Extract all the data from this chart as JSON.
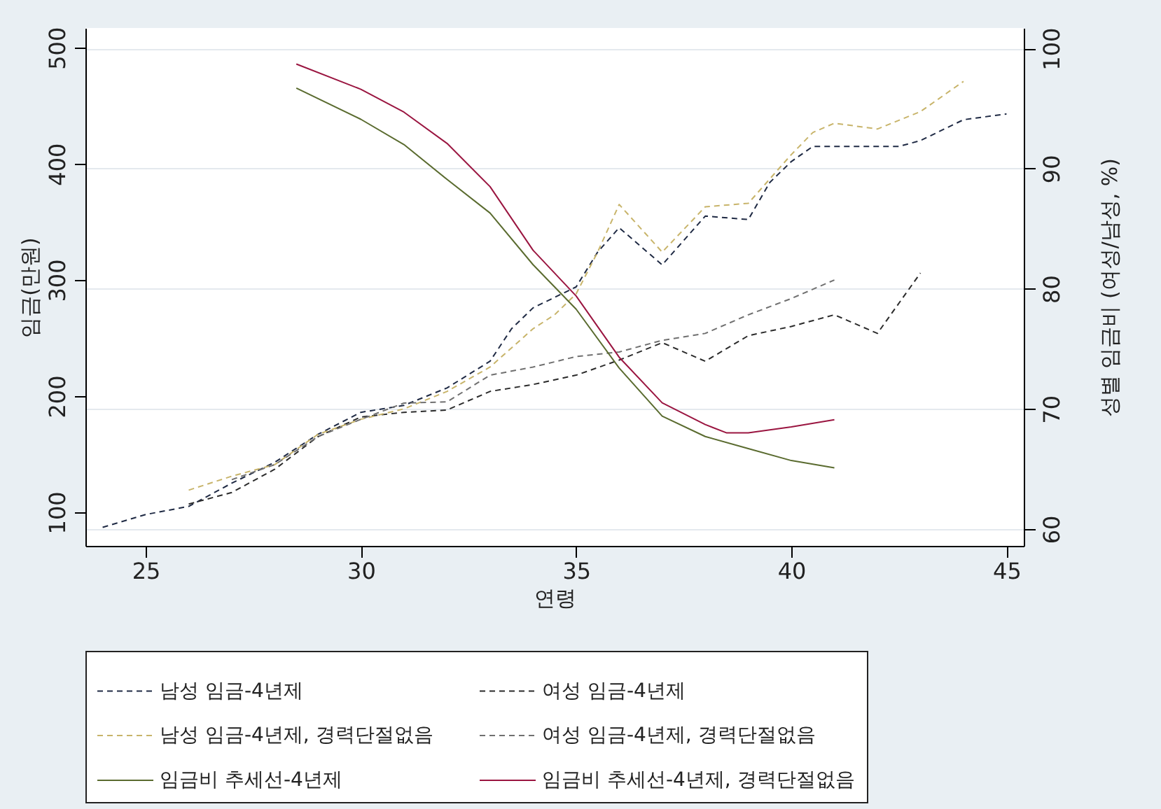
{
  "chart_data": {
    "type": "line",
    "xlabel": "연령",
    "ylabel": "임금(만원)",
    "y2label": "성별 임금비 (여성/남성, %)",
    "xlim": [
      23.6,
      45.4
    ],
    "xticks": [
      25,
      30,
      35,
      40,
      45
    ],
    "ylim": [
      71,
      517
    ],
    "yticks": [
      100,
      200,
      300,
      400,
      500
    ],
    "y2lim": [
      58.6,
      101.7
    ],
    "y2ticks": [
      60,
      70,
      80,
      90,
      100
    ],
    "grid": "y2",
    "legend": "bottom",
    "series": [
      {
        "name": "남성 임금-4년제",
        "color": "#1f2a44",
        "line_style": "dashed",
        "x": [
          24,
          25,
          26,
          27,
          28,
          29,
          30,
          30.5,
          31,
          32,
          33,
          33.5,
          34,
          34.5,
          35,
          35.5,
          36,
          37,
          38,
          39,
          39.5,
          40,
          40.5,
          41.5,
          42.5,
          43,
          44,
          45
        ],
        "values": [
          87,
          98,
          105,
          125,
          143,
          167,
          186,
          189,
          192,
          207,
          230,
          258,
          276,
          285,
          294,
          324,
          345,
          313,
          355,
          352,
          384,
          402,
          415,
          415,
          415,
          420,
          438,
          443
        ]
      },
      {
        "name": "여성 임금-4년제",
        "color": "#2b2b2b",
        "line_style": "dashed",
        "x": [
          26,
          27,
          28,
          29,
          30,
          31,
          32,
          33,
          34,
          35,
          36,
          37,
          38,
          39,
          40,
          41,
          42,
          43
        ],
        "values": [
          107,
          117,
          137,
          165,
          182,
          186,
          188,
          204,
          210,
          218,
          231,
          246,
          230,
          252,
          260,
          270,
          254,
          306
        ]
      },
      {
        "name": "남성 임금-4년제, 경력단절없음",
        "color": "#c8b46a",
        "line_style": "dashed",
        "x": [
          26,
          27,
          28,
          29,
          30,
          31,
          32,
          33,
          34,
          34.5,
          35,
          35.5,
          36,
          37,
          38,
          39,
          40,
          40.5,
          41,
          42,
          43,
          44
        ],
        "values": [
          119,
          131,
          141,
          167,
          180,
          189,
          204,
          225,
          258,
          270,
          288,
          324,
          365,
          324,
          363,
          366,
          408,
          427,
          435,
          430,
          445,
          471
        ]
      },
      {
        "name": "여성 임금-4년제, 경력단절없음",
        "color": "#707070",
        "line_style": "dashed",
        "x": [
          27,
          28,
          29,
          30,
          31,
          32,
          33,
          34,
          35,
          36,
          37,
          38,
          39,
          40,
          41
        ],
        "values": [
          128,
          141,
          165,
          180,
          194,
          195,
          218,
          225,
          234,
          238,
          248,
          254,
          270,
          284,
          300
        ]
      },
      {
        "name": "임금비 추세선-4년제",
        "color": "#5a6b2f",
        "line_style": "solid",
        "axis": "y2",
        "x": [
          28.5,
          30,
          31,
          32,
          33,
          34,
          35,
          36,
          37,
          38,
          39,
          40,
          41
        ],
        "values": [
          96.7,
          94.1,
          92.0,
          89.1,
          86.3,
          82.0,
          78.3,
          73.4,
          69.4,
          67.7,
          66.7,
          65.7,
          65.1
        ]
      },
      {
        "name": "임금비 추세선-4년제, 경력단절없음",
        "color": "#9a1540",
        "line_style": "solid",
        "axis": "y2",
        "x": [
          28.5,
          30,
          31,
          32,
          33,
          34,
          35,
          36,
          37,
          38,
          38.5,
          39,
          40,
          41
        ],
        "values": [
          98.7,
          96.6,
          94.7,
          92.1,
          88.5,
          83.2,
          79.4,
          74.3,
          70.5,
          68.7,
          68.0,
          68.0,
          68.5,
          69.1
        ]
      }
    ]
  }
}
